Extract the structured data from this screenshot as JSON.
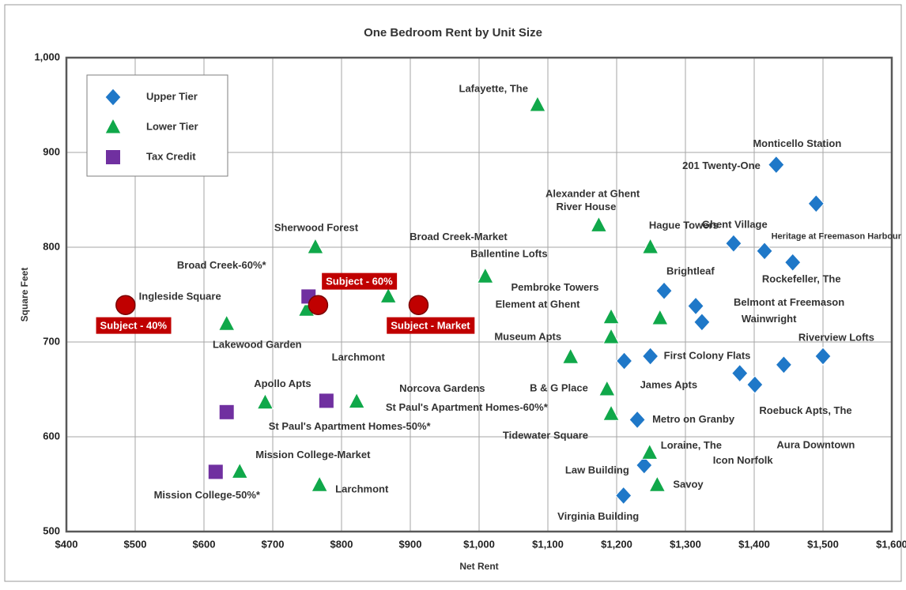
{
  "chart_data": {
    "type": "scatter",
    "title": "One Bedroom Rent by Unit Size",
    "x_label": "Net Rent",
    "y_label": "Square Feet",
    "xlim": [
      400,
      1600
    ],
    "ylim": [
      500,
      1000
    ],
    "xticks": [
      {
        "value": 400,
        "label": "$400"
      },
      {
        "value": 500,
        "label": "$500"
      },
      {
        "value": 600,
        "label": "$600"
      },
      {
        "value": 700,
        "label": "$700"
      },
      {
        "value": 800,
        "label": "$800"
      },
      {
        "value": 900,
        "label": "$900"
      },
      {
        "value": 1000,
        "label": "$1,000"
      },
      {
        "value": 1100,
        "label": "$1,100"
      },
      {
        "value": 1200,
        "label": "$1,200"
      },
      {
        "value": 1300,
        "label": "$1,300"
      },
      {
        "value": 1400,
        "label": "$1,400"
      },
      {
        "value": 1500,
        "label": "$1,500"
      },
      {
        "value": 1600,
        "label": "$1,600"
      }
    ],
    "yticks": [
      500,
      600,
      700,
      800,
      900,
      {
        "value": 1000,
        "label": "1,000"
      }
    ],
    "grid": true,
    "legend": "upper-left",
    "series": [
      {
        "name": "Upper Tier",
        "marker": "diamond",
        "color": "#1f78c8",
        "x": [
          1432,
          1490,
          1370,
          1415,
          1456,
          1269,
          1315,
          1324,
          1249,
          1211,
          1500,
          1379,
          1401,
          1443,
          1230,
          1240,
          1210
        ],
        "y": [
          887,
          846,
          804,
          796,
          784,
          754,
          738,
          721,
          685,
          680,
          685,
          667,
          655,
          676,
          618,
          570,
          538
        ],
        "labels": [
          "201 Twenty-One",
          "Monticello Station",
          "Ghent Village",
          "Heritage at Freemason Harbour",
          "Rockefeller, The",
          "Brightleaf",
          "Belmont at Freemason",
          "Wainwright",
          "First Colony Flats",
          "James Apts",
          "Riverview Lofts",
          "Icon Norfolk",
          "Aura Downtown",
          "Roebuck Apts, The",
          "Metro on Granby",
          "Law Building",
          "Virginia Building"
        ]
      },
      {
        "name": "Lower Tier",
        "marker": "triangle",
        "color": "#10a84a",
        "x": [
          1085,
          1174,
          1249,
          1263,
          762,
          868,
          1009,
          633,
          749,
          767,
          1192,
          1192,
          1133,
          1186,
          1192,
          689,
          822,
          652,
          768,
          1248,
          1259
        ],
        "y": [
          950,
          823,
          800,
          725,
          800,
          748,
          769,
          719,
          734,
          739,
          726,
          705,
          684,
          650,
          624,
          636,
          637,
          563,
          549,
          583,
          549
        ],
        "labels": [
          "Lafayette, The",
          "River House",
          "Alexander at Ghent",
          "Hague Towers",
          "Sherwood Forest",
          "Broad Creek-Market",
          "Ballentine Lofts",
          "Ingleside Square",
          "Larchmont",
          "Lakewood Garden",
          "Pembroke Towers",
          "Element at Ghent",
          "Museum Apts",
          "B & G Place",
          "Tidewater Square",
          "Apollo Apts",
          "Norcova Gardens",
          "Mission College-Market",
          "Larchmont",
          "Loraine, The",
          "Savoy"
        ]
      },
      {
        "name": "Tax Credit",
        "marker": "square",
        "color": "#7030a0",
        "x": [
          752,
          778,
          633,
          617
        ],
        "y": [
          748,
          638,
          626,
          563
        ],
        "labels": [
          "Broad Creek-60%*",
          "St Paul's Apartment Homes-60%*",
          "St Paul's Apartment Homes-50%*",
          "Mission College-50%*"
        ]
      },
      {
        "marker": "circle",
        "color": "#c00000",
        "x": [
          486,
          766,
          912
        ],
        "y": [
          739,
          739,
          739
        ],
        "labels": [
          "Subject - 40%",
          "Subject - 60%",
          "Subject - Market"
        ]
      }
    ]
  }
}
